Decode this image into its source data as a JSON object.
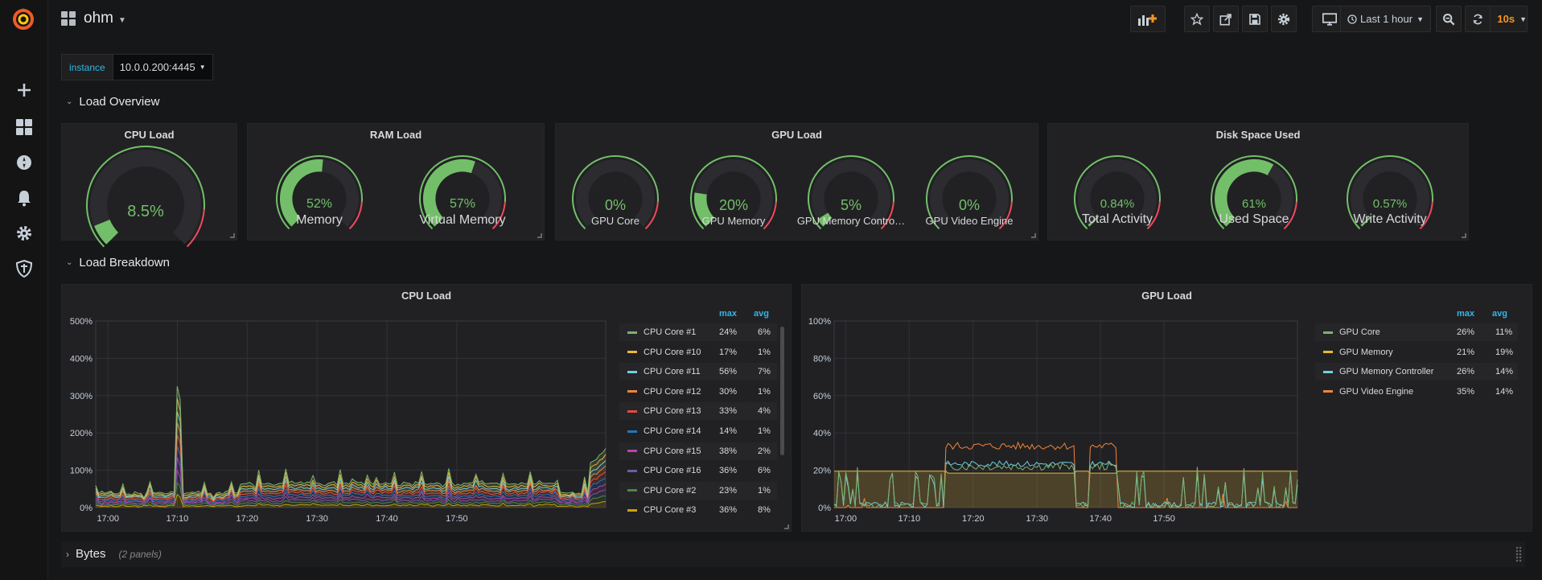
{
  "dashboard": {
    "title": "ohm"
  },
  "toolbar": {
    "time_range": "Last 1 hour",
    "refresh": "10s"
  },
  "variables": [
    {
      "label": "instance",
      "value": "10.0.0.200:4445"
    }
  ],
  "rows": {
    "load_overview": "Load Overview",
    "load_breakdown": "Load Breakdown",
    "bytes": "Bytes",
    "bytes_sub": "(2 panels)"
  },
  "panels": {
    "cpu_load": {
      "title": "CPU Load",
      "value": "8.5%",
      "fraction": 0.085
    },
    "ram_load": {
      "title": "RAM Load",
      "gauges": [
        {
          "value": "52%",
          "label": "Memory",
          "fraction": 0.52
        },
        {
          "value": "57%",
          "label": "Virtual Memory",
          "fraction": 0.57
        }
      ]
    },
    "gpu_load": {
      "title": "GPU Load",
      "gauges": [
        {
          "value": "0%",
          "label": "GPU Core",
          "fraction": 0.0
        },
        {
          "value": "20%",
          "label": "GPU Memory",
          "fraction": 0.2
        },
        {
          "value": "5%",
          "label": "GPU Memory Contro…",
          "fraction": 0.05
        },
        {
          "value": "0%",
          "label": "GPU Video Engine",
          "fraction": 0.0
        }
      ]
    },
    "disk": {
      "title": "Disk Space Used",
      "gauges": [
        {
          "value": "0.84%",
          "label": "Total Activity",
          "fraction": 0.0084
        },
        {
          "value": "61%",
          "label": "Used Space",
          "fraction": 0.61
        },
        {
          "value": "0.57%",
          "label": "Write Activity",
          "fraction": 0.0057
        }
      ]
    },
    "cpu_graph": {
      "title": "CPU Load",
      "legend_max": "max",
      "legend_avg": "avg",
      "y_ticks": [
        "0%",
        "100%",
        "200%",
        "300%",
        "400%",
        "500%"
      ],
      "x_ticks": [
        "17:00",
        "17:10",
        "17:20",
        "17:30",
        "17:40",
        "17:50"
      ],
      "legend": [
        {
          "name": "CPU Core #1",
          "max": "24%",
          "avg": "6%",
          "color": "#7eb26d"
        },
        {
          "name": "CPU Core #10",
          "max": "17%",
          "avg": "1%",
          "color": "#eab839"
        },
        {
          "name": "CPU Core #11",
          "max": "56%",
          "avg": "7%",
          "color": "#6ed0e0"
        },
        {
          "name": "CPU Core #12",
          "max": "30%",
          "avg": "1%",
          "color": "#ef843c"
        },
        {
          "name": "CPU Core #13",
          "max": "33%",
          "avg": "4%",
          "color": "#e24d42"
        },
        {
          "name": "CPU Core #14",
          "max": "14%",
          "avg": "1%",
          "color": "#1f78c1"
        },
        {
          "name": "CPU Core #15",
          "max": "38%",
          "avg": "2%",
          "color": "#ba43a9"
        },
        {
          "name": "CPU Core #16",
          "max": "36%",
          "avg": "6%",
          "color": "#705da0"
        },
        {
          "name": "CPU Core #2",
          "max": "23%",
          "avg": "1%",
          "color": "#508642"
        },
        {
          "name": "CPU Core #3",
          "max": "36%",
          "avg": "8%",
          "color": "#cca300"
        }
      ]
    },
    "gpu_graph": {
      "title": "GPU Load",
      "legend_max": "max",
      "legend_avg": "avg",
      "y_ticks": [
        "0%",
        "20%",
        "40%",
        "60%",
        "80%",
        "100%"
      ],
      "x_ticks": [
        "17:00",
        "17:10",
        "17:20",
        "17:30",
        "17:40",
        "17:50"
      ],
      "legend": [
        {
          "name": "GPU Core",
          "max": "26%",
          "avg": "11%",
          "color": "#7eb26d"
        },
        {
          "name": "GPU Memory",
          "max": "21%",
          "avg": "19%",
          "color": "#eab839"
        },
        {
          "name": "GPU Memory Controller",
          "max": "26%",
          "avg": "14%",
          "color": "#6ed0e0"
        },
        {
          "name": "GPU Video Engine",
          "max": "35%",
          "avg": "14%",
          "color": "#ef843c"
        }
      ]
    }
  }
}
